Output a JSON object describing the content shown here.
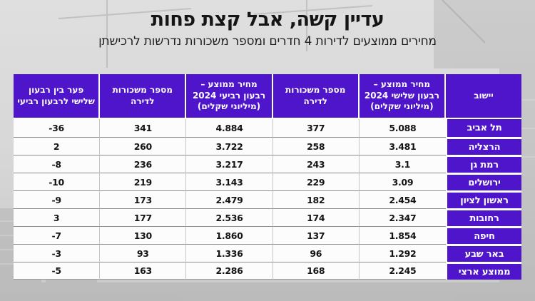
{
  "title": "עדיין קשה, אבל קצת פחות",
  "subtitle": "מחירים ממוצעים לדירות 4 חדרים ומספר משכורות נדרשות לרכישתן",
  "colors": {
    "accent_purple": "#4E15CB",
    "header_text": "#FFFFFF",
    "body_text": "#141414",
    "background_gray": "#D7D7D7"
  },
  "chart_data": {
    "type": "table",
    "title": "עדיין קשה, אבל קצת פחות",
    "subtitle": "מחירים ממוצעים לדירות 4 חדרים ומספר משכורות נדרשות לרכישתן",
    "direction": "rtl",
    "legend_position": "none",
    "columns": [
      {
        "key": "city",
        "label": "יישוב"
      },
      {
        "key": "q3_price",
        "label": "מחיר ממוצע – רבעון שלישי 2024 (מיליוני שקלים)"
      },
      {
        "key": "q3_salaries",
        "label": "מספר משכורות לדירה"
      },
      {
        "key": "q4_price",
        "label": "מחיר ממוצע – רבעון רביעי 2024 (מיליוני שקלים)"
      },
      {
        "key": "q4_salaries",
        "label": "מספר משכורות לדירה"
      },
      {
        "key": "gap",
        "label": "פער בין רבעון שלישי לרבעון רביעי"
      }
    ],
    "rows": [
      {
        "city": "תל אביב",
        "q3_price": "5.088",
        "q3_salaries": "377",
        "q4_price": "4.884",
        "q4_salaries": "341",
        "gap": "-36"
      },
      {
        "city": "הרצליה",
        "q3_price": "3.481",
        "q3_salaries": "258",
        "q4_price": "3.722",
        "q4_salaries": "260",
        "gap": "2"
      },
      {
        "city": "רמת גן",
        "q3_price": "3.1",
        "q3_salaries": "243",
        "q4_price": "3.217",
        "q4_salaries": "236",
        "gap": "-8"
      },
      {
        "city": "ירושלים",
        "q3_price": "3.09",
        "q3_salaries": "229",
        "q4_price": "3.143",
        "q4_salaries": "219",
        "gap": "-10"
      },
      {
        "city": "ראשון לציון",
        "q3_price": "2.454",
        "q3_salaries": "182",
        "q4_price": "2.479",
        "q4_salaries": "173",
        "gap": "-9"
      },
      {
        "city": "רחובות",
        "q3_price": "2.347",
        "q3_salaries": "174",
        "q4_price": "2.536",
        "q4_salaries": "177",
        "gap": "3"
      },
      {
        "city": "חיפה",
        "q3_price": "1.854",
        "q3_salaries": "137",
        "q4_price": "1.860",
        "q4_salaries": "130",
        "gap": "-7"
      },
      {
        "city": "באר שבע",
        "q3_price": "1.292",
        "q3_salaries": "96",
        "q4_price": "1.336",
        "q4_salaries": "93",
        "gap": "-3"
      },
      {
        "city": "ממוצע ארצי",
        "q3_price": "2.245",
        "q3_salaries": "168",
        "q4_price": "2.286",
        "q4_salaries": "163",
        "gap": "-5"
      }
    ]
  }
}
